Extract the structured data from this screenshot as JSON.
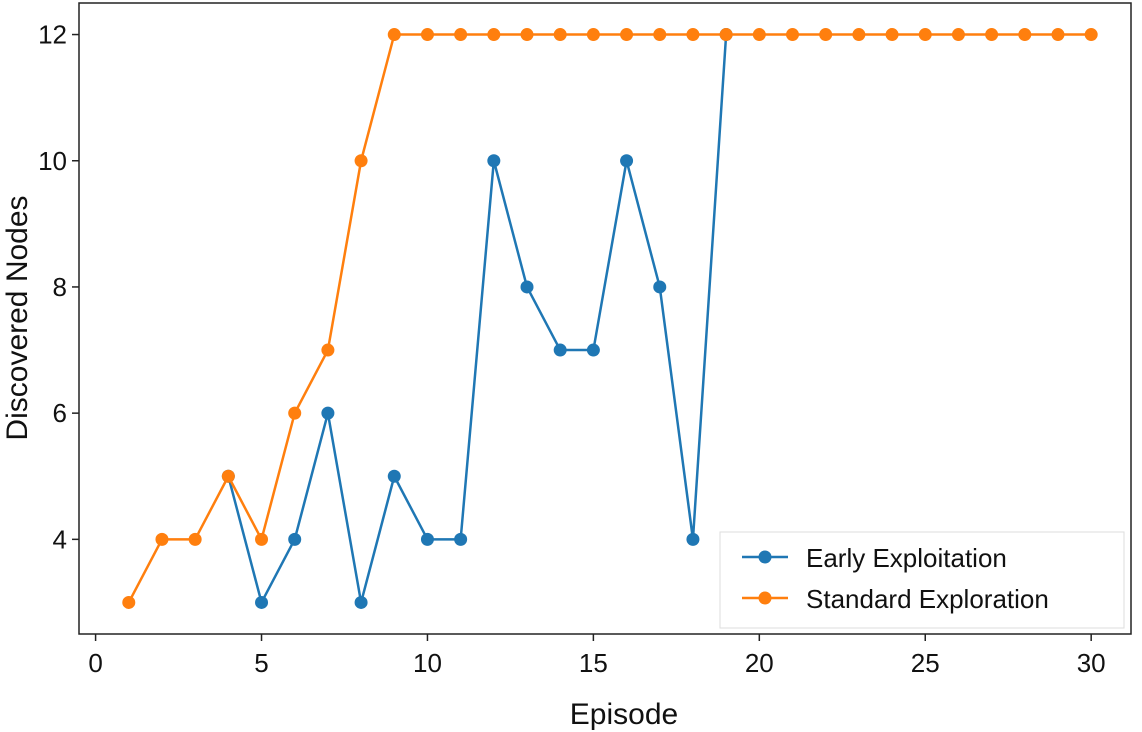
{
  "chart_data": {
    "type": "line",
    "title": "",
    "xlabel": "Episode",
    "ylabel": "Discovered Nodes",
    "xlim": [
      -0.5,
      31.2
    ],
    "ylim": [
      2.5,
      12.5
    ],
    "xticks": [
      0,
      5,
      10,
      15,
      20,
      25,
      30
    ],
    "yticks": [
      4,
      6,
      8,
      10,
      12
    ],
    "grid": false,
    "legend_position": "bottom-right",
    "series": [
      {
        "name": "Early Exploitation",
        "color": "#1f77b4",
        "marker": "circle",
        "x": [
          4,
          5,
          6,
          7,
          8,
          9,
          10,
          11,
          12,
          13,
          14,
          15,
          16,
          17,
          18,
          19
        ],
        "y": [
          5,
          3,
          4,
          6,
          3,
          5,
          4,
          4,
          10,
          8,
          7,
          7,
          10,
          8,
          4,
          12
        ]
      },
      {
        "name": "Standard Exploration",
        "color": "#ff7f0e",
        "marker": "circle",
        "x": [
          1,
          2,
          3,
          4,
          5,
          6,
          7,
          8,
          9,
          10,
          11,
          12,
          13,
          14,
          15,
          16,
          17,
          18,
          19,
          20,
          21,
          22,
          23,
          24,
          25,
          26,
          27,
          28,
          29,
          30
        ],
        "y": [
          3,
          4,
          4,
          5,
          4,
          6,
          7,
          10,
          12,
          12,
          12,
          12,
          12,
          12,
          12,
          12,
          12,
          12,
          12,
          12,
          12,
          12,
          12,
          12,
          12,
          12,
          12,
          12,
          12,
          12
        ]
      }
    ]
  }
}
